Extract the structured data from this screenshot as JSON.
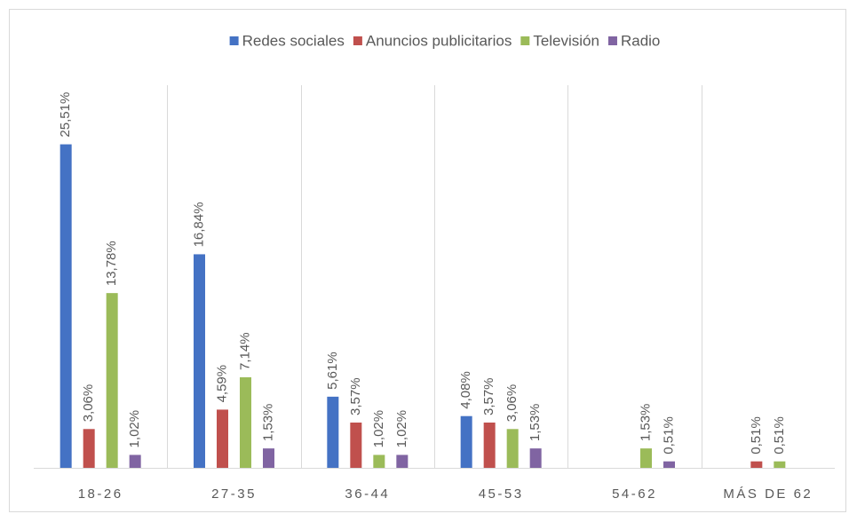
{
  "chart_data": {
    "type": "bar",
    "categories": [
      "18-26",
      "27-35",
      "36-44",
      "45-53",
      "54-62",
      "MÁS DE 62"
    ],
    "series": [
      {
        "name": "Redes sociales",
        "color": "#4472c4",
        "values": [
          25.51,
          16.84,
          5.61,
          4.08,
          null,
          null
        ],
        "value_labels": [
          "25,51%",
          "16,84%",
          "5,61%",
          "4,08%",
          null,
          null
        ]
      },
      {
        "name": "Anuncios publicitarios",
        "color": "#c0504d",
        "values": [
          3.06,
          4.59,
          3.57,
          3.57,
          null,
          0.51
        ],
        "value_labels": [
          "3,06%",
          "4,59%",
          "3,57%",
          "3,57%",
          null,
          "0,51%"
        ]
      },
      {
        "name": "Televisión",
        "color": "#9bbb59",
        "values": [
          13.78,
          7.14,
          1.02,
          3.06,
          1.53,
          0.51
        ],
        "value_labels": [
          "13,78%",
          "7,14%",
          "1,02%",
          "3,06%",
          "1,53%",
          "0,51%"
        ]
      },
      {
        "name": "Radio",
        "color": "#8064a2",
        "values": [
          1.02,
          1.53,
          1.02,
          1.53,
          0.51,
          null
        ],
        "value_labels": [
          "1,02%",
          "1,53%",
          "1,02%",
          "1,53%",
          "0,51%",
          null
        ]
      }
    ],
    "ylim": [
      0,
      28
    ],
    "legend": "top"
  }
}
